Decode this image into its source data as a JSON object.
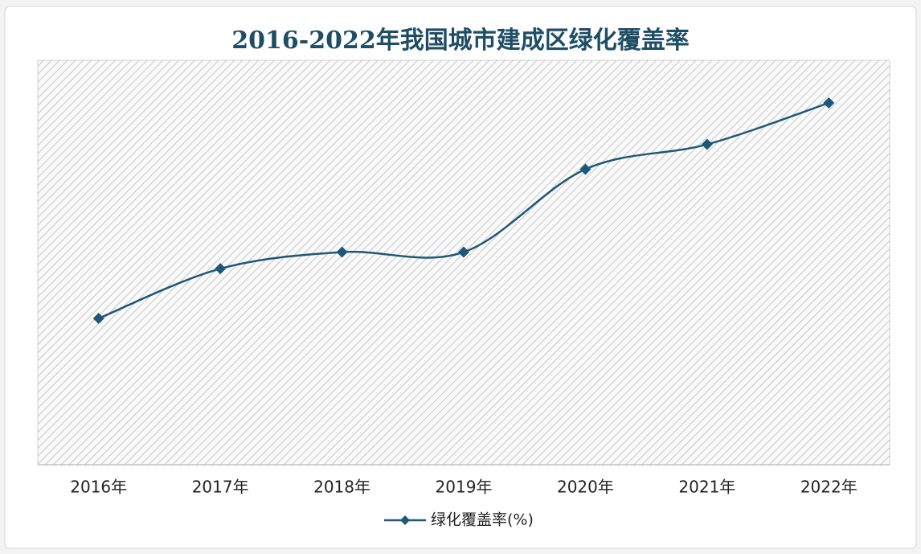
{
  "chart_data": {
    "type": "line",
    "title": "2016-2022年我国城市建成区绿化覆盖率",
    "categories": [
      "2016年",
      "2017年",
      "2018年",
      "2019年",
      "2020年",
      "2021年",
      "2022年"
    ],
    "series": [
      {
        "name": "绿化覆盖率(%)",
        "color": "#1e5878",
        "values": [
          40.3,
          40.9,
          41.1,
          41.1,
          42.1,
          42.4,
          42.9
        ]
      }
    ],
    "smooth": true,
    "marker": "diamond"
  }
}
